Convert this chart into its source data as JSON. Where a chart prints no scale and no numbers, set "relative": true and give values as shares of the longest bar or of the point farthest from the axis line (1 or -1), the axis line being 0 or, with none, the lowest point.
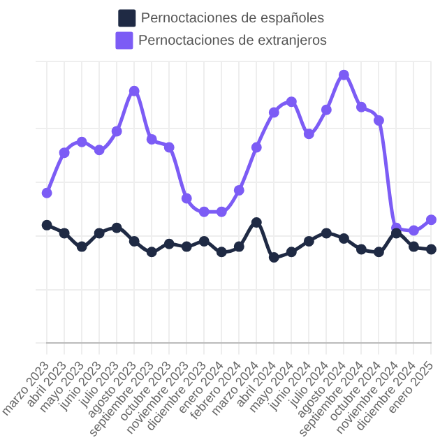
{
  "chart_data": {
    "type": "line",
    "relative": true,
    "grid": true,
    "legend": "top",
    "marker": "circle",
    "line_style": "solid",
    "categories": [
      "marzo 2023",
      "abril 2023",
      "mayo 2023",
      "junio 2023",
      "julio 2023",
      "agosto 2023",
      "septiembre 2023",
      "octubre 2023",
      "noviembre 2023",
      "diciembre 2023",
      "enero 2024",
      "febrero 2024",
      "marzo 2024",
      "abril 2024",
      "mayo 2024",
      "junio 2024",
      "julio 2024",
      "agosto 2024",
      "septiembre 2024",
      "octubre 2024",
      "noviembre 2024",
      "diciembre 2024",
      "enero 2025"
    ],
    "series": [
      {
        "name": "Pernoctaciones de españoles",
        "color": "#1f2a44",
        "values": [
          0.44,
          0.41,
          0.36,
          0.41,
          0.43,
          0.38,
          0.34,
          0.37,
          0.36,
          0.38,
          0.34,
          0.36,
          0.45,
          0.32,
          0.34,
          0.38,
          0.41,
          0.39,
          0.35,
          0.34,
          0.41,
          0.36,
          0.35
        ]
      },
      {
        "name": "Pernoctaciones de extranjeros",
        "color": "#7c5cf5",
        "values": [
          0.56,
          0.71,
          0.75,
          0.72,
          0.79,
          0.94,
          0.76,
          0.73,
          0.54,
          0.49,
          0.49,
          0.57,
          0.73,
          0.86,
          0.9,
          0.78,
          0.87,
          1,
          0.88,
          0.83,
          0.43,
          0.42,
          0.46
        ]
      }
    ]
  }
}
